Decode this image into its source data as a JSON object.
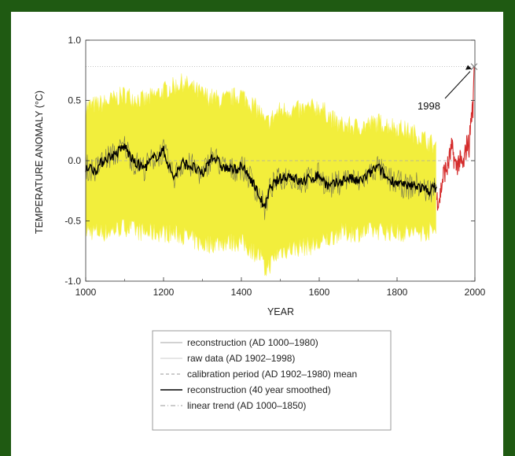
{
  "colors": {
    "frame_border": "#1f5a12",
    "uncertainty": "#f2ee3c",
    "smoothed": "#000000",
    "raw_data": "#d42a2a",
    "calibration_mean": "#aaaaaa",
    "reconstruction": "#555555"
  },
  "chart_data": {
    "type": "line",
    "title": "",
    "xlabel": "YEAR",
    "ylabel": "TEMPERATURE ANOMALY (°C)",
    "xlim": [
      1000,
      2000
    ],
    "ylim": [
      -1.0,
      1.0
    ],
    "x_ticks": [
      "1000",
      "1200",
      "1400",
      "1600",
      "1800",
      "2000"
    ],
    "y_ticks": [
      "1.0",
      "0.5",
      "0.0",
      "-0.5",
      "-1.0"
    ],
    "calibration_mean": 0.0,
    "reference_line": 0.78,
    "annotation": {
      "text": "1998",
      "x": 1998,
      "y": 0.78
    },
    "legend_position": "bottom",
    "series": [
      {
        "name": "reconstruction (40 year smoothed)",
        "x": [
          1000,
          1025,
          1050,
          1075,
          1100,
          1125,
          1150,
          1175,
          1200,
          1225,
          1250,
          1275,
          1300,
          1325,
          1350,
          1375,
          1400,
          1425,
          1450,
          1460,
          1475,
          1500,
          1525,
          1550,
          1575,
          1600,
          1625,
          1650,
          1675,
          1700,
          1725,
          1750,
          1775,
          1800,
          1825,
          1850,
          1875,
          1900
        ],
        "values": [
          -0.05,
          -0.08,
          0.02,
          0.05,
          0.12,
          -0.02,
          -0.06,
          0.02,
          0.08,
          -0.14,
          -0.02,
          -0.05,
          -0.12,
          0.05,
          -0.05,
          -0.08,
          -0.05,
          -0.15,
          -0.32,
          -0.4,
          -0.22,
          -0.15,
          -0.12,
          -0.18,
          -0.15,
          -0.12,
          -0.22,
          -0.18,
          -0.14,
          -0.18,
          -0.12,
          -0.05,
          -0.15,
          -0.18,
          -0.22,
          -0.2,
          -0.25,
          -0.22
        ]
      },
      {
        "name": "raw data (AD 1902–1998)",
        "x": [
          1902,
          1910,
          1920,
          1930,
          1940,
          1945,
          1950,
          1960,
          1970,
          1975,
          1980,
          1985,
          1990,
          1995,
          1998
        ],
        "values": [
          -0.32,
          -0.3,
          -0.1,
          -0.05,
          0.1,
          0.05,
          -0.05,
          0.0,
          -0.05,
          0.05,
          0.15,
          0.12,
          0.35,
          0.45,
          0.78
        ]
      },
      {
        "name": "uncertainty envelope",
        "x": [
          1000,
          1050,
          1100,
          1150,
          1200,
          1250,
          1300,
          1350,
          1400,
          1450,
          1460,
          1500,
          1550,
          1600,
          1650,
          1700,
          1750,
          1800,
          1850,
          1900
        ],
        "upper": [
          0.45,
          0.48,
          0.55,
          0.5,
          0.58,
          0.65,
          0.55,
          0.5,
          0.55,
          0.4,
          0.3,
          0.42,
          0.42,
          0.45,
          0.3,
          0.28,
          0.32,
          0.28,
          0.22,
          0.12
        ],
        "lower": [
          -0.58,
          -0.6,
          -0.55,
          -0.6,
          -0.6,
          -0.62,
          -0.7,
          -0.68,
          -0.68,
          -0.8,
          -0.92,
          -0.75,
          -0.72,
          -0.7,
          -0.6,
          -0.6,
          -0.58,
          -0.6,
          -0.6,
          -0.58
        ]
      }
    ],
    "legend": [
      {
        "label": "reconstruction (AD 1000–1980)",
        "style": "thin"
      },
      {
        "label": "raw data (AD 1902–1998)",
        "style": "thin-light"
      },
      {
        "label": "calibration period (AD 1902–1980) mean",
        "style": "dashed"
      },
      {
        "label": "reconstruction (40 year smoothed)",
        "style": "thick"
      },
      {
        "label": "linear trend (AD 1000–1850)",
        "style": "dashdot"
      }
    ]
  }
}
